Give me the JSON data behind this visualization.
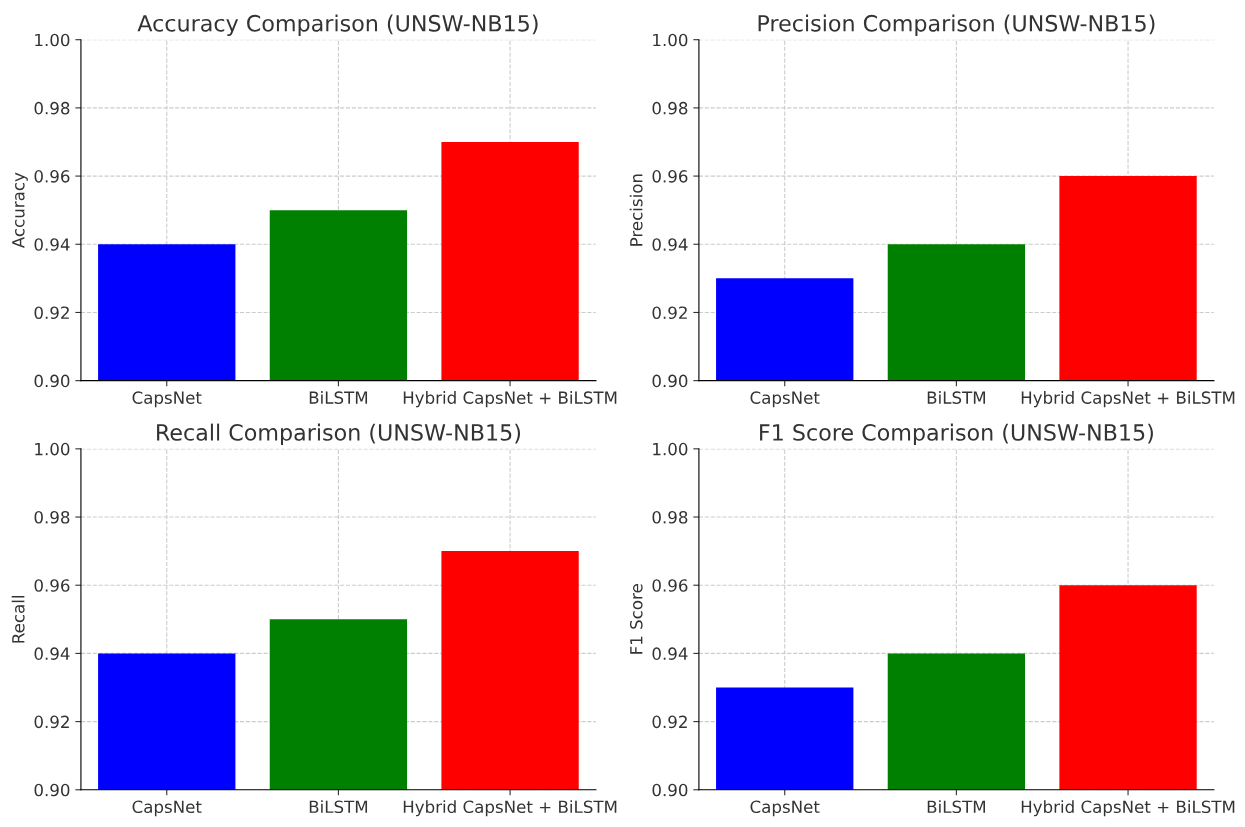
{
  "chart_data": [
    {
      "type": "bar",
      "title": "Accuracy Comparison (UNSW-NB15)",
      "ylabel": "Accuracy",
      "categories": [
        "CapsNet",
        "BiLSTM",
        "Hybrid CapsNet + BiLSTM"
      ],
      "values": [
        0.94,
        0.95,
        0.97
      ],
      "colors": [
        "#0000ff",
        "#008000",
        "#ff0000"
      ],
      "ylim": [
        0.9,
        1.0
      ],
      "yticks": [
        {
          "value": 0.9,
          "label": "0.90"
        },
        {
          "value": 0.92,
          "label": "0.92"
        },
        {
          "value": 0.94,
          "label": "0.94"
        },
        {
          "value": 0.96,
          "label": "0.96"
        },
        {
          "value": 0.98,
          "label": "0.98"
        },
        {
          "value": 1.0,
          "label": "1.00"
        }
      ],
      "grid": true
    },
    {
      "type": "bar",
      "title": "Precision Comparison (UNSW-NB15)",
      "ylabel": "Precision",
      "categories": [
        "CapsNet",
        "BiLSTM",
        "Hybrid CapsNet + BiLSTM"
      ],
      "values": [
        0.93,
        0.94,
        0.96
      ],
      "colors": [
        "#0000ff",
        "#008000",
        "#ff0000"
      ],
      "ylim": [
        0.9,
        1.0
      ],
      "yticks": [
        {
          "value": 0.9,
          "label": "0.90"
        },
        {
          "value": 0.92,
          "label": "0.92"
        },
        {
          "value": 0.94,
          "label": "0.94"
        },
        {
          "value": 0.96,
          "label": "0.96"
        },
        {
          "value": 0.98,
          "label": "0.98"
        },
        {
          "value": 1.0,
          "label": "1.00"
        }
      ],
      "grid": true
    },
    {
      "type": "bar",
      "title": "Recall Comparison (UNSW-NB15)",
      "ylabel": "Recall",
      "categories": [
        "CapsNet",
        "BiLSTM",
        "Hybrid CapsNet + BiLSTM"
      ],
      "values": [
        0.94,
        0.95,
        0.97
      ],
      "colors": [
        "#0000ff",
        "#008000",
        "#ff0000"
      ],
      "ylim": [
        0.9,
        1.0
      ],
      "yticks": [
        {
          "value": 0.9,
          "label": "0.90"
        },
        {
          "value": 0.92,
          "label": "0.92"
        },
        {
          "value": 0.94,
          "label": "0.94"
        },
        {
          "value": 0.96,
          "label": "0.96"
        },
        {
          "value": 0.98,
          "label": "0.98"
        },
        {
          "value": 1.0,
          "label": "1.00"
        }
      ],
      "grid": true
    },
    {
      "type": "bar",
      "title": "F1 Score Comparison (UNSW-NB15)",
      "ylabel": "F1 Score",
      "categories": [
        "CapsNet",
        "BiLSTM",
        "Hybrid CapsNet + BiLSTM"
      ],
      "values": [
        0.93,
        0.94,
        0.96
      ],
      "colors": [
        "#0000ff",
        "#008000",
        "#ff0000"
      ],
      "ylim": [
        0.9,
        1.0
      ],
      "yticks": [
        {
          "value": 0.9,
          "label": "0.90"
        },
        {
          "value": 0.92,
          "label": "0.92"
        },
        {
          "value": 0.94,
          "label": "0.94"
        },
        {
          "value": 0.96,
          "label": "0.96"
        },
        {
          "value": 0.98,
          "label": "0.98"
        },
        {
          "value": 1.0,
          "label": "1.00"
        }
      ],
      "grid": true
    }
  ]
}
